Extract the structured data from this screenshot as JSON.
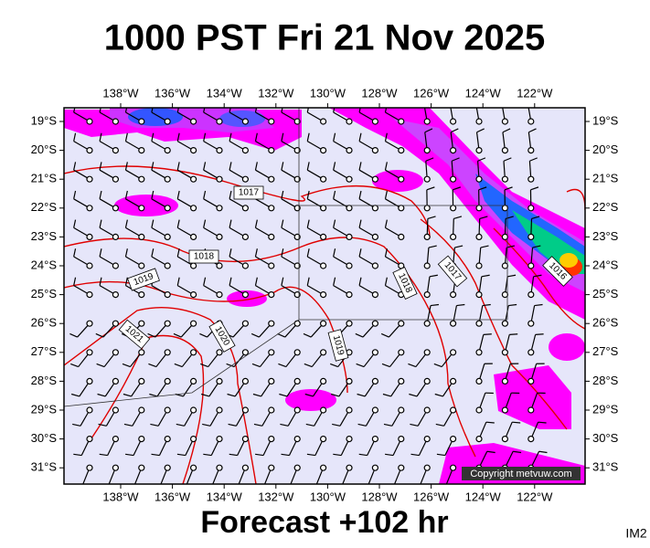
{
  "title": "1000 PST Fri 21 Nov 2025",
  "longitudes": [
    "138°W",
    "136°W",
    "134°W",
    "132°W",
    "130°W",
    "128°W",
    "126°W",
    "124°W",
    "122°W"
  ],
  "latitudes": [
    "19°S",
    "20°S",
    "21°S",
    "22°S",
    "23°S",
    "24°S",
    "25°S",
    "26°S",
    "27°S",
    "28°S",
    "29°S",
    "30°S",
    "31°S"
  ],
  "isobars": [
    "1017",
    "1018",
    "1019",
    "1021",
    "1020",
    "1018",
    "1017",
    "1019",
    "1016"
  ],
  "copyright": "Copyright metvuw.com",
  "forecast": "Forecast +102 hr",
  "image_id": "IM2"
}
